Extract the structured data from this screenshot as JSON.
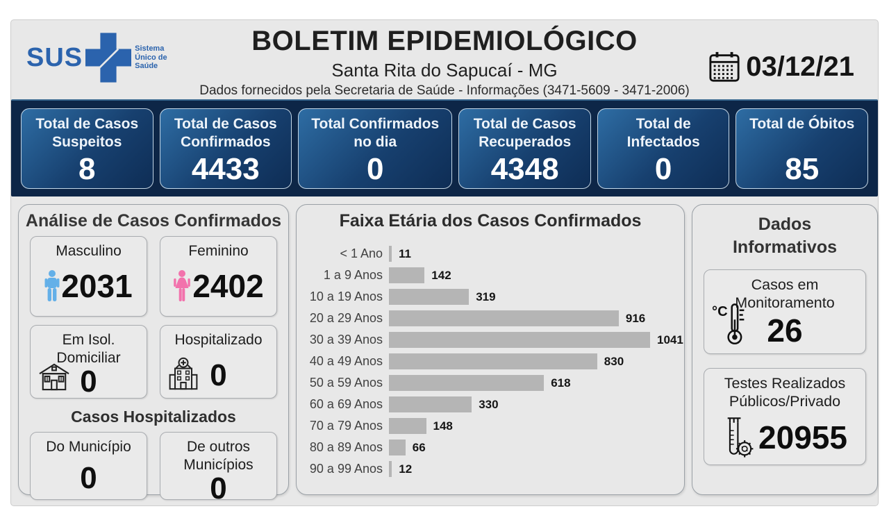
{
  "header": {
    "logo": {
      "name": "SUS",
      "subtitle": "Sistema Único de Saúde"
    },
    "title": "BOLETIM EPIDEMIOLÓGICO",
    "subtitle": "Santa Rita do Sapucaí - MG",
    "info_line": "Dados fornecidos pela Secretaria de Saúde - Informações (3471-5609 - 3471-2006)",
    "date": "03/12/21"
  },
  "stats": {
    "cards": [
      {
        "label": "Total de Casos Suspeitos",
        "value": "8"
      },
      {
        "label": "Total de Casos Confirmados",
        "value": "4433"
      },
      {
        "label": "Total Confirmados no dia",
        "value": "0"
      },
      {
        "label": "Total de Casos Recuperados",
        "value": "4348"
      },
      {
        "label": "Total de Infectados",
        "value": "0"
      },
      {
        "label": "Total de Óbitos",
        "value": "85"
      }
    ]
  },
  "analysis": {
    "title": "Análise de Casos Confirmados",
    "gender_cards": [
      {
        "label": "Masculino",
        "value": "2031",
        "icon": "male-icon"
      },
      {
        "label": "Feminino",
        "value": "2402",
        "icon": "female-icon"
      }
    ],
    "status_cards": [
      {
        "label": "Em Isol. Domiciliar",
        "value": "0",
        "icon": "house-icon"
      },
      {
        "label": "Hospitalizado",
        "value": "0",
        "icon": "hospital-icon"
      }
    ],
    "hospitalized": {
      "title": "Casos Hospitalizados",
      "cards": [
        {
          "label": "Do Município",
          "value": "0"
        },
        {
          "label": "De outros Municípios",
          "value": "0"
        }
      ]
    }
  },
  "chart_data": {
    "type": "bar",
    "orientation": "horizontal",
    "title": "Faixa Etária dos Casos Confirmados",
    "categories": [
      "< 1 Ano",
      "1 a 9 Anos",
      "10 a 19 Anos",
      "20 a 29 Anos",
      "30 a 39 Anos",
      "40 a 49 Anos",
      "50 a 59 Anos",
      "60 a 69 Anos",
      "70 a 79 Anos",
      "80 a 89 Anos",
      "90 a 99 Anos"
    ],
    "values": [
      11,
      142,
      319,
      916,
      1041,
      830,
      618,
      330,
      148,
      66,
      12
    ],
    "scale_max": 1041,
    "bar_color": "#b5b5b5",
    "data_labels": true,
    "grid": false
  },
  "info": {
    "title": "Dados Informativos",
    "cards": [
      {
        "label": "Casos em Monitoramento",
        "value": "26",
        "icon": "thermometer-icon"
      },
      {
        "label": "Testes Realizados Públicos/Privado",
        "value": "20955",
        "icon": "test-tube-icon"
      }
    ]
  },
  "colors": {
    "board_background": "#e8e8e8",
    "band_navy": "#0d2647",
    "stat_card_gradient_start": "#2e6da4",
    "stat_card_gradient_end": "#0e2d55",
    "bar_gray": "#b5b5b5",
    "logo_blue": "#2b63ad",
    "male_icon": "#64b0e8",
    "female_icon": "#f272ac"
  }
}
